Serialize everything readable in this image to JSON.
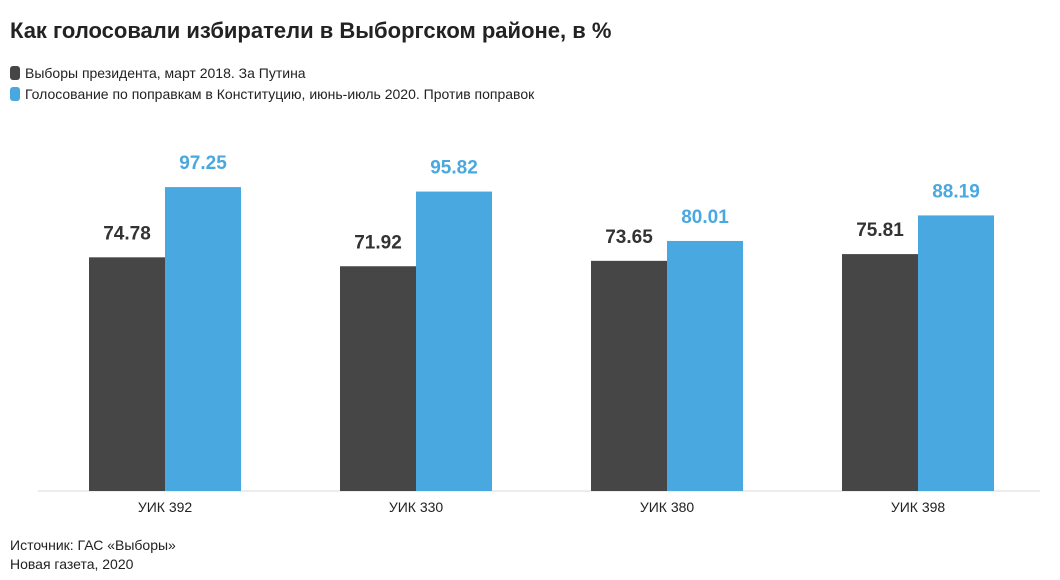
{
  "chart_data": {
    "type": "bar",
    "title": "Как голосовали избиратели в Выборгском районе, в %",
    "categories": [
      "УИК 392",
      "УИК 330",
      "УИК 380",
      "УИК 398"
    ],
    "series": [
      {
        "name": "Выборы президента, март 2018. За Путина",
        "color": "#474647",
        "values": [
          74.78,
          71.92,
          73.65,
          75.81
        ],
        "labels": [
          "74.78",
          "71.92",
          "73.65",
          "75.81"
        ]
      },
      {
        "name": "Голосование по поправкам в Конституцию, июнь-июль 2020. Против поправок",
        "color": "#4aa8e0",
        "values": [
          97.25,
          95.82,
          80.01,
          88.19
        ],
        "labels": [
          "97.25",
          "95.82",
          "80.01",
          "88.19"
        ]
      }
    ],
    "ylim": [
      0,
      100
    ],
    "grid": false,
    "legend": "top-left",
    "xlabel": "",
    "ylabel": ""
  },
  "footer": {
    "source": "Источник: ГАС «Выборы»",
    "credit": "Новая газета, 2020"
  }
}
